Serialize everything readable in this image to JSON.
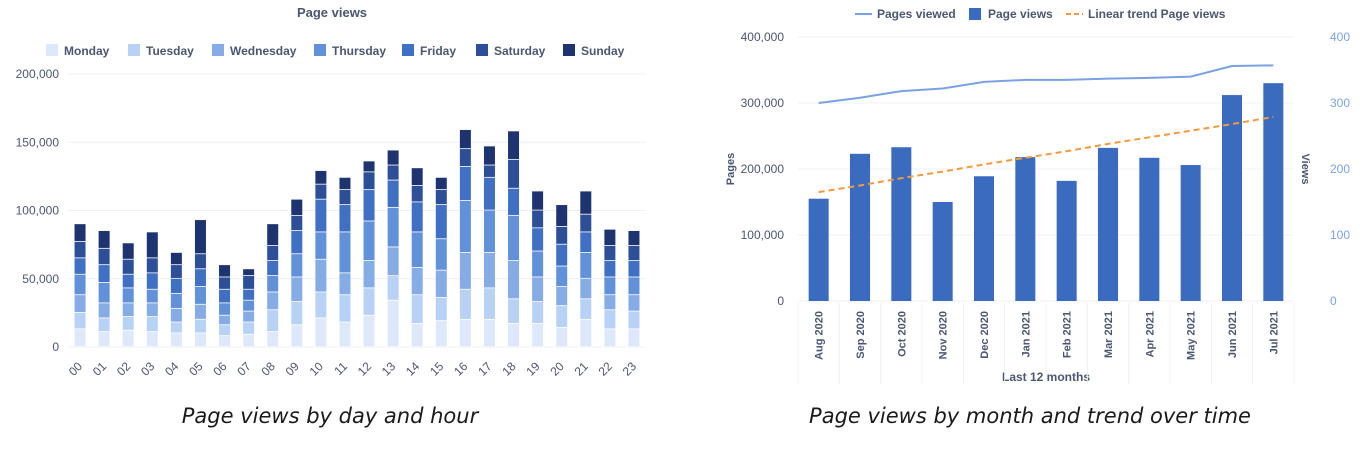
{
  "colors": {
    "monday": "#dde9fb",
    "tuesday": "#b7d2f5",
    "wednesday": "#86ace6",
    "thursday": "#6191d9",
    "friday": "#3f70c4",
    "saturday": "#2c4f98",
    "sunday": "#1e3470",
    "bar": "#3a6bbf",
    "line": "#7aa2e3",
    "trend": "#f39a3d",
    "axis_text": "#4a5672",
    "right_axis_text": "#7aa2e3",
    "grid": "#eef0f4"
  },
  "captions": {
    "left": "Page views by day and hour",
    "right": "Page views by month and trend over time"
  },
  "chart_data": [
    {
      "type": "bar",
      "stacked": true,
      "title": "Page views",
      "categories": [
        "00",
        "01",
        "02",
        "03",
        "04",
        "05",
        "06",
        "07",
        "08",
        "09",
        "10",
        "11",
        "12",
        "13",
        "14",
        "15",
        "16",
        "17",
        "18",
        "19",
        "20",
        "21",
        "22",
        "23"
      ],
      "ylim": [
        0,
        200000
      ],
      "yticks": [
        "0",
        "50,000",
        "100,000",
        "150,000",
        "200,000"
      ],
      "legend_position": "top",
      "series": [
        {
          "name": "Monday",
          "values": [
            13000,
            11000,
            12000,
            11000,
            10000,
            10000,
            8000,
            9000,
            11000,
            16000,
            21000,
            18000,
            23000,
            34000,
            17000,
            19000,
            20000,
            20000,
            17000,
            17000,
            14000,
            20000,
            13000,
            13000
          ]
        },
        {
          "name": "Tuesday",
          "values": [
            12000,
            10000,
            10000,
            11000,
            8000,
            10000,
            8000,
            9000,
            16000,
            17000,
            19000,
            20000,
            20000,
            18000,
            21000,
            17000,
            22000,
            23000,
            18000,
            16000,
            16000,
            15000,
            14000,
            13000
          ]
        },
        {
          "name": "Wednesday",
          "values": [
            13000,
            11000,
            10000,
            10000,
            10000,
            11000,
            7000,
            8000,
            13000,
            18000,
            24000,
            16000,
            20000,
            21000,
            20000,
            20000,
            27000,
            26000,
            28000,
            18000,
            14000,
            15000,
            11000,
            12000
          ]
        },
        {
          "name": "Thursday",
          "values": [
            15000,
            15000,
            11000,
            10000,
            11000,
            13000,
            9000,
            8000,
            12000,
            17000,
            20000,
            30000,
            29000,
            29000,
            26000,
            23000,
            38000,
            31000,
            33000,
            19000,
            15000,
            19000,
            13000,
            13000
          ]
        },
        {
          "name": "Friday",
          "values": [
            12000,
            13000,
            10000,
            12000,
            11000,
            13000,
            10000,
            8000,
            11000,
            17000,
            24000,
            20000,
            23000,
            20000,
            22000,
            25000,
            25000,
            24000,
            20000,
            17000,
            16000,
            15000,
            12000,
            12000
          ]
        },
        {
          "name": "Saturday",
          "values": [
            12000,
            12000,
            11000,
            11000,
            10000,
            11000,
            9000,
            10000,
            11000,
            11000,
            11000,
            11000,
            13000,
            11000,
            12000,
            11000,
            13000,
            9000,
            21000,
            13000,
            13000,
            13000,
            11000,
            11000
          ]
        },
        {
          "name": "Sunday",
          "values": [
            13000,
            13000,
            12000,
            19000,
            9000,
            25000,
            9000,
            5000,
            16000,
            12000,
            10000,
            9000,
            8000,
            11000,
            13000,
            9000,
            14000,
            14000,
            21000,
            14000,
            16000,
            17000,
            12000,
            11000
          ]
        }
      ]
    },
    {
      "type": "bar",
      "xlabel": "Last 12 months",
      "ylabel": "Pages",
      "y2label": "Views",
      "categories": [
        "Aug 2020",
        "Sep 2020",
        "Oct 2020",
        "Nov 2020",
        "Dec 2020",
        "Jan 2021",
        "Feb 2021",
        "Mar 2021",
        "Apr 2021",
        "May 2021",
        "Jun 2021",
        "Jul 2021"
      ],
      "ylim": [
        0,
        400000
      ],
      "yticks": [
        "0",
        "100,000",
        "200,000",
        "300,000",
        "400,000"
      ],
      "y2lim": [
        0,
        400
      ],
      "y2ticks": [
        "0",
        "100",
        "200",
        "300",
        "400"
      ],
      "legend_position": "top",
      "series": [
        {
          "name": "Pages viewed",
          "type": "line",
          "axis": "right",
          "values": [
            300,
            308,
            318,
            322,
            332,
            335,
            335,
            337,
            338,
            340,
            356,
            357
          ]
        },
        {
          "name": "Page views",
          "type": "bar",
          "axis": "left",
          "values": [
            155000,
            223000,
            233000,
            150000,
            189000,
            218000,
            182000,
            232000,
            217000,
            206000,
            312000,
            330000
          ]
        },
        {
          "name": "Linear trend Page views",
          "type": "line",
          "style": "dashed",
          "axis": "left",
          "values": [
            165000,
            175000,
            186000,
            196000,
            207000,
            217000,
            227000,
            238000,
            248000,
            258000,
            268000,
            279000
          ]
        }
      ]
    }
  ]
}
